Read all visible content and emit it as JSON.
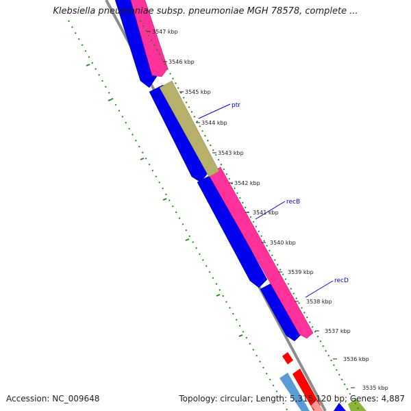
{
  "header": {
    "title": "Klebsiella pneumoniae subsp. pneumoniae MGH 78578, complete ..."
  },
  "footer": {
    "accession": "Accession: NC_009648",
    "summary": "Topology: circular; Length: 5,315,120 bp; Genes: 4,887"
  },
  "colors": {
    "forward_gene": "#ff3399",
    "reverse_gene": "#0000ee",
    "ptr_gene": "#b5b06a",
    "backbone": "#8c8c8c",
    "gc_marks": "#1a8c1a",
    "label_color": "#0000cc",
    "red_feature": "#ff0000",
    "light_blue_feature": "#5b9bd5",
    "olive_feature": "#8db33a"
  },
  "ticks": [
    {
      "label": "3547 kbp"
    },
    {
      "label": "3546 kbp"
    },
    {
      "label": "3545 kbp"
    },
    {
      "label": "3544 kbp"
    },
    {
      "label": "3543 kbp"
    },
    {
      "label": "3542 kbp"
    },
    {
      "label": "3541 kbp"
    },
    {
      "label": "3540 kbp"
    },
    {
      "label": "3539 kbp"
    },
    {
      "label": "3538 kbp"
    },
    {
      "label": "3537 kbp"
    },
    {
      "label": "3536 kbp"
    },
    {
      "label": "3535 kbp"
    }
  ],
  "gene_labels": {
    "ptr": "ptr",
    "recB": "recB",
    "recD": "recD"
  }
}
